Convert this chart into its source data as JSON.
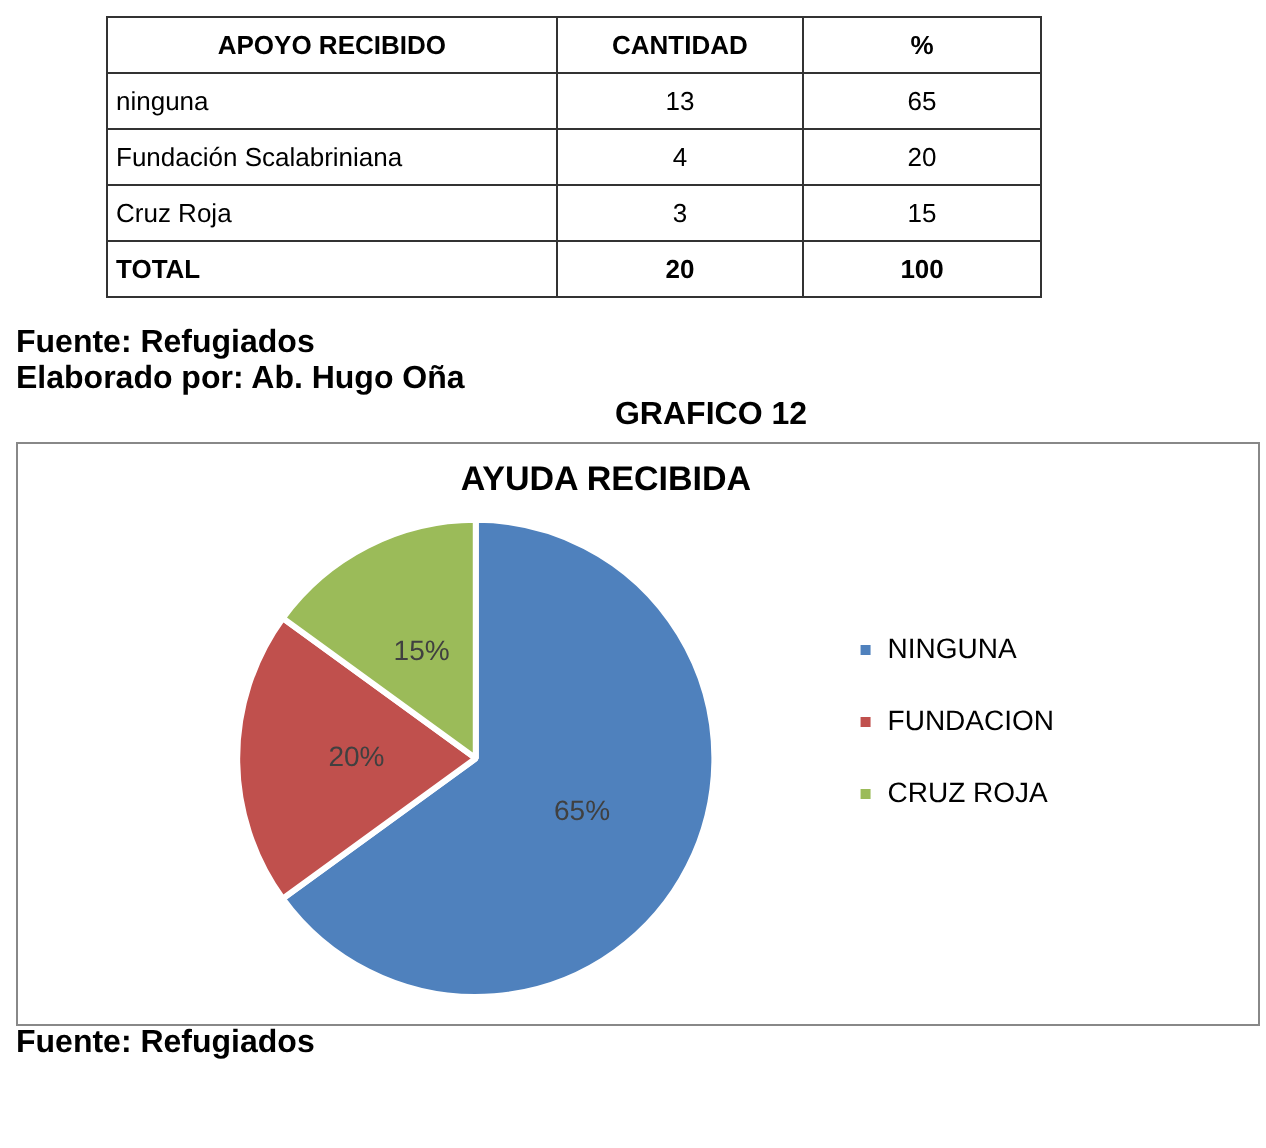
{
  "chart_data": [
    {
      "type": "other",
      "annotations": [
        "APOYO RECIBIDO",
        "CANTIDAD",
        "%",
        "ninguna",
        "13",
        "65",
        "Fundación Scalabriniana",
        "4",
        "20",
        "Cruz Roja",
        "3",
        "15",
        "TOTAL",
        "20",
        "100",
        "Fuente: Refugiados",
        "Elaborado por: Ab. Hugo Oña"
      ]
    },
    {
      "type": "pie",
      "subtitle": "GRAFICO 12",
      "title": "AYUDA RECIBIDA",
      "categories": [
        "NINGUNA",
        "FUNDACION",
        "CRUZ ROJA"
      ],
      "values": [
        65,
        20,
        15
      ],
      "colors": [
        "#4f81bd",
        "#c0504d",
        "#9bbb59"
      ],
      "value_labels": [
        "65%",
        "20%",
        "15%"
      ],
      "legend": "right",
      "annotations": [
        "Fuente: Refugiados"
      ]
    }
  ]
}
